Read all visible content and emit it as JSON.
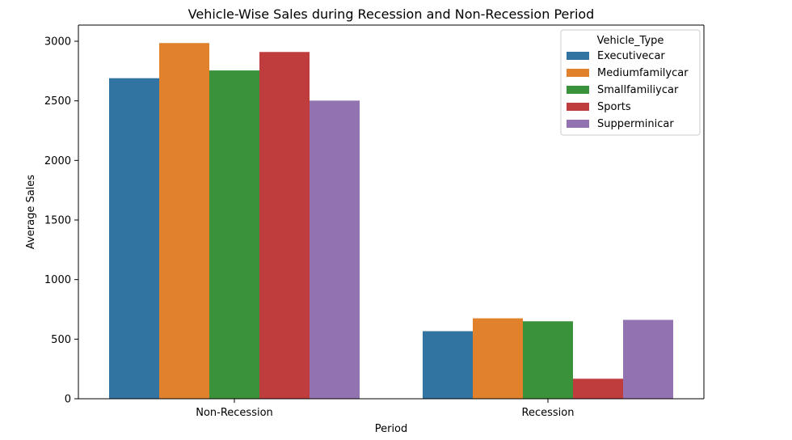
{
  "chart_data": {
    "type": "bar",
    "title": "Vehicle-Wise Sales during Recession and Non-Recession Period",
    "xlabel": "Period",
    "ylabel": "Average Sales",
    "categories": [
      "Non-Recession",
      "Recession"
    ],
    "ylim": [
      0,
      3000
    ],
    "yticks": [
      0,
      500,
      1000,
      1500,
      2000,
      2500,
      3000
    ],
    "legend": {
      "title": "Vehicle_Type",
      "position": "top-right"
    },
    "grid": false,
    "series": [
      {
        "name": "Executivecar",
        "color": "#3274a1",
        "values": [
          2690,
          567
        ]
      },
      {
        "name": "Mediumfamilycar",
        "color": "#e1812c",
        "values": [
          2985,
          675
        ]
      },
      {
        "name": "Smallfamiliycar",
        "color": "#3a923a",
        "values": [
          2755,
          650
        ]
      },
      {
        "name": "Sports",
        "color": "#c03d3e",
        "values": [
          2910,
          168
        ]
      },
      {
        "name": "Supperminicar",
        "color": "#9372b2",
        "values": [
          2502,
          662
        ]
      }
    ]
  }
}
